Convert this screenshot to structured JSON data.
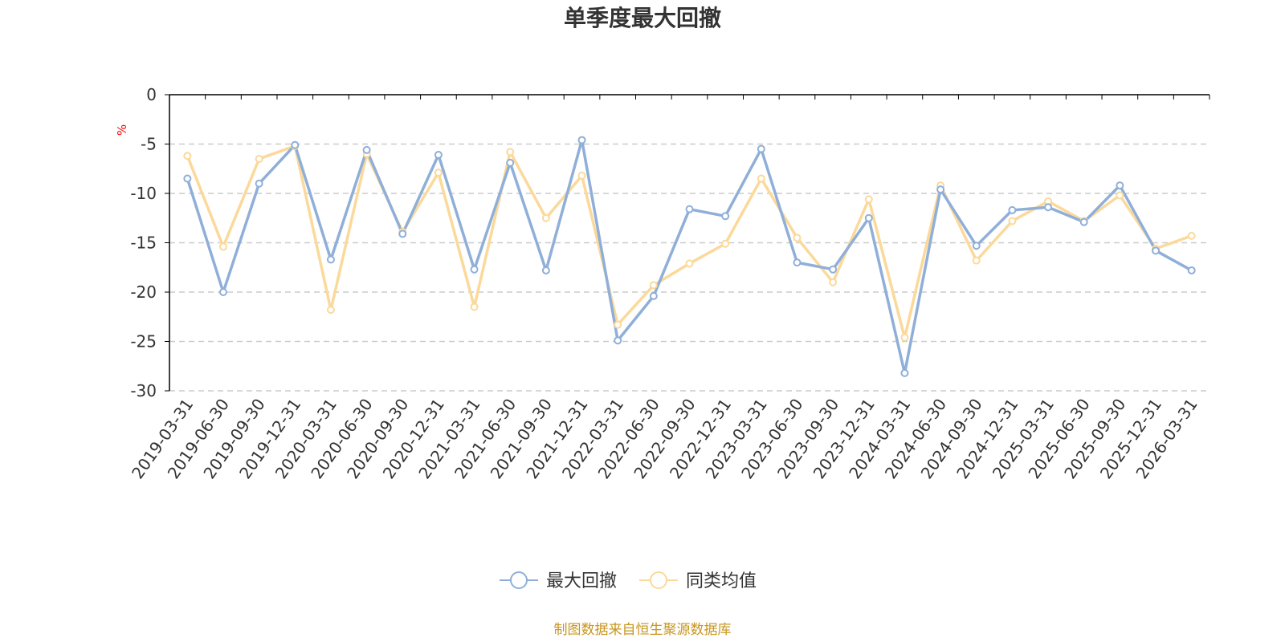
{
  "chart_data": {
    "type": "line",
    "title": "单季度最大回撤",
    "ylabel": "%",
    "ylim": [
      -30,
      0
    ],
    "yticks": [
      0,
      -5,
      -10,
      -15,
      -20,
      -25,
      -30
    ],
    "grid": true,
    "legend_position": "bottom-center",
    "categories": [
      "2019-03-31",
      "2019-06-30",
      "2019-09-30",
      "2019-12-31",
      "2020-03-31",
      "2020-06-30",
      "2020-09-30",
      "2020-12-31",
      "2021-03-31",
      "2021-06-30",
      "2021-09-30",
      "2021-12-31",
      "2022-03-31",
      "2022-06-30",
      "2022-09-30",
      "2022-12-31",
      "2023-03-31",
      "2023-06-30",
      "2023-09-30",
      "2023-12-31",
      "2024-03-31",
      "2024-06-30",
      "2024-09-30",
      "2024-12-31",
      "2025-03-31",
      "2025-06-30",
      "2025-09-30",
      "2025-12-31",
      "2026-03-31"
    ],
    "series": [
      {
        "name": "最大回撤",
        "color": "#8fafd9",
        "values": [
          -8.5,
          -20.0,
          -9.0,
          -5.1,
          -16.7,
          -5.6,
          -14.1,
          -6.1,
          -17.7,
          -6.9,
          -17.8,
          -4.6,
          -24.9,
          -20.4,
          -11.6,
          -12.3,
          -5.5,
          -17.0,
          -17.7,
          -12.5,
          -28.2,
          -9.6,
          -15.3,
          -11.7,
          -11.4,
          -12.9,
          -9.2,
          -15.8,
          -17.8
        ]
      },
      {
        "name": "同类均值",
        "color": "#fbd99a",
        "values": [
          -6.2,
          -15.4,
          -6.5,
          -5.2,
          -21.8,
          -6.0,
          -13.9,
          -7.9,
          -21.5,
          -5.8,
          -12.5,
          -8.2,
          -23.3,
          -19.3,
          -17.1,
          -15.1,
          -8.5,
          -14.5,
          -19.0,
          -10.6,
          -24.6,
          -9.2,
          -16.8,
          -12.8,
          -10.8,
          -12.8,
          -10.2,
          -15.6,
          -14.3
        ]
      }
    ]
  },
  "footer": {
    "source": "制图数据来自恒生聚源数据库"
  },
  "colors": {
    "unit": "#ff0000",
    "source": "#c8961e",
    "axis": "#000000",
    "grid": "#cccccc"
  }
}
